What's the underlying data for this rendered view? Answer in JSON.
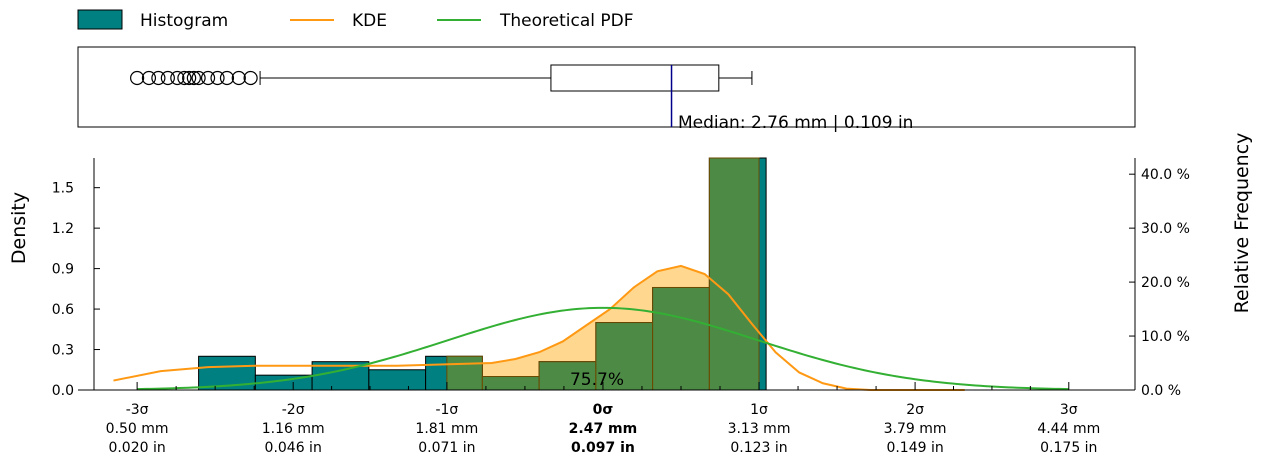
{
  "chart_data": {
    "type": "bar",
    "legend": {
      "placement": "top-left",
      "entries": [
        {
          "label": "Histogram",
          "kind": "patch",
          "color": "#008080"
        },
        {
          "label": "KDE",
          "kind": "line",
          "color": "#ff9914"
        },
        {
          "label": "Theoretical PDF",
          "kind": "line",
          "color": "#33b033"
        }
      ]
    },
    "ylabel_left": "Density",
    "ylabel_right": "Relative Frequency",
    "x_range": [
      0.25,
      4.72
    ],
    "y_left_range": [
      0,
      1.72
    ],
    "y_right_range": [
      0,
      43.0
    ],
    "y_left_ticks": [
      {
        "value": 0.0,
        "label": "0.0"
      },
      {
        "value": 0.3,
        "label": "0.3"
      },
      {
        "value": 0.6,
        "label": "0.6"
      },
      {
        "value": 0.9,
        "label": "0.9"
      },
      {
        "value": 1.2,
        "label": "1.2"
      },
      {
        "value": 1.5,
        "label": "1.5"
      }
    ],
    "y_right_ticks": [
      {
        "value": 0,
        "label": "0.0 %"
      },
      {
        "value": 10,
        "label": "10.0 %"
      },
      {
        "value": 20,
        "label": "20.0 %"
      },
      {
        "value": 30,
        "label": "30.0 %"
      },
      {
        "value": 40,
        "label": "40.0 %"
      }
    ],
    "x_ticks": [
      {
        "value": 0.5,
        "sigma": "-3σ",
        "mm": "0.50 mm",
        "inch": "0.020 in",
        "bold": false
      },
      {
        "value": 1.16,
        "sigma": "-2σ",
        "mm": "1.16 mm",
        "inch": "0.046 in",
        "bold": false
      },
      {
        "value": 1.81,
        "sigma": "-1σ",
        "mm": "1.81 mm",
        "inch": "0.071 in",
        "bold": false
      },
      {
        "value": 2.47,
        "sigma": "0σ",
        "mm": "2.47 mm",
        "inch": "0.097 in",
        "bold": true
      },
      {
        "value": 3.13,
        "sigma": "1σ",
        "mm": "3.13 mm",
        "inch": "0.123 in",
        "bold": false
      },
      {
        "value": 3.79,
        "sigma": "2σ",
        "mm": "3.79 mm",
        "inch": "0.149 in",
        "bold": false
      },
      {
        "value": 4.44,
        "sigma": "3σ",
        "mm": "4.44 mm",
        "inch": "0.175 in",
        "bold": false
      }
    ],
    "histogram": {
      "color": "#008080",
      "bins": [
        {
          "x0": 0.76,
          "x1": 1.0,
          "density": 0.25
        },
        {
          "x0": 1.0,
          "x1": 1.24,
          "density": 0.11
        },
        {
          "x0": 1.24,
          "x1": 1.48,
          "density": 0.21
        },
        {
          "x0": 1.48,
          "x1": 1.72,
          "density": 0.15
        },
        {
          "x0": 1.72,
          "x1": 1.96,
          "density": 0.25
        },
        {
          "x0": 1.96,
          "x1": 2.2,
          "density": 0.1
        },
        {
          "x0": 2.2,
          "x1": 2.44,
          "density": 0.21
        },
        {
          "x0": 2.44,
          "x1": 2.68,
          "density": 0.5
        },
        {
          "x0": 2.68,
          "x1": 2.92,
          "density": 0.76
        },
        {
          "x0": 2.92,
          "x1": 3.16,
          "density": 1.72
        }
      ]
    },
    "kde": {
      "color": "#ff9914",
      "x": [
        0.4,
        0.6,
        0.8,
        1.0,
        1.2,
        1.4,
        1.6,
        1.8,
        2.0,
        2.1,
        2.2,
        2.3,
        2.4,
        2.5,
        2.6,
        2.7,
        2.8,
        2.9,
        3.0,
        3.1,
        3.2,
        3.3,
        3.4,
        3.5,
        3.6,
        3.7,
        3.8,
        3.9,
        4.0
      ],
      "y": [
        0.07,
        0.14,
        0.17,
        0.18,
        0.18,
        0.18,
        0.18,
        0.19,
        0.2,
        0.23,
        0.28,
        0.36,
        0.48,
        0.6,
        0.76,
        0.88,
        0.92,
        0.86,
        0.71,
        0.49,
        0.28,
        0.13,
        0.05,
        0.01,
        0.0,
        0.0,
        0.0,
        0.0,
        0.0
      ]
    },
    "theoretical_pdf": {
      "color": "#33b033",
      "mean": 2.47,
      "sd": 0.655
    },
    "shaded_region": {
      "x0": 1.81,
      "x1": 3.13,
      "color": "#ffb733",
      "label": "75.7%"
    },
    "boxplot": {
      "whisker_low": 1.02,
      "q1": 2.25,
      "median": 2.76,
      "q3": 2.96,
      "whisker_high": 3.1,
      "median_color": "#00008b",
      "outliers": [
        0.5,
        0.55,
        0.59,
        0.63,
        0.67,
        0.7,
        0.72,
        0.74,
        0.76,
        0.8,
        0.84,
        0.88,
        0.93,
        0.98
      ],
      "median_label": "Median: 2.76 mm | 0.109 in"
    }
  }
}
